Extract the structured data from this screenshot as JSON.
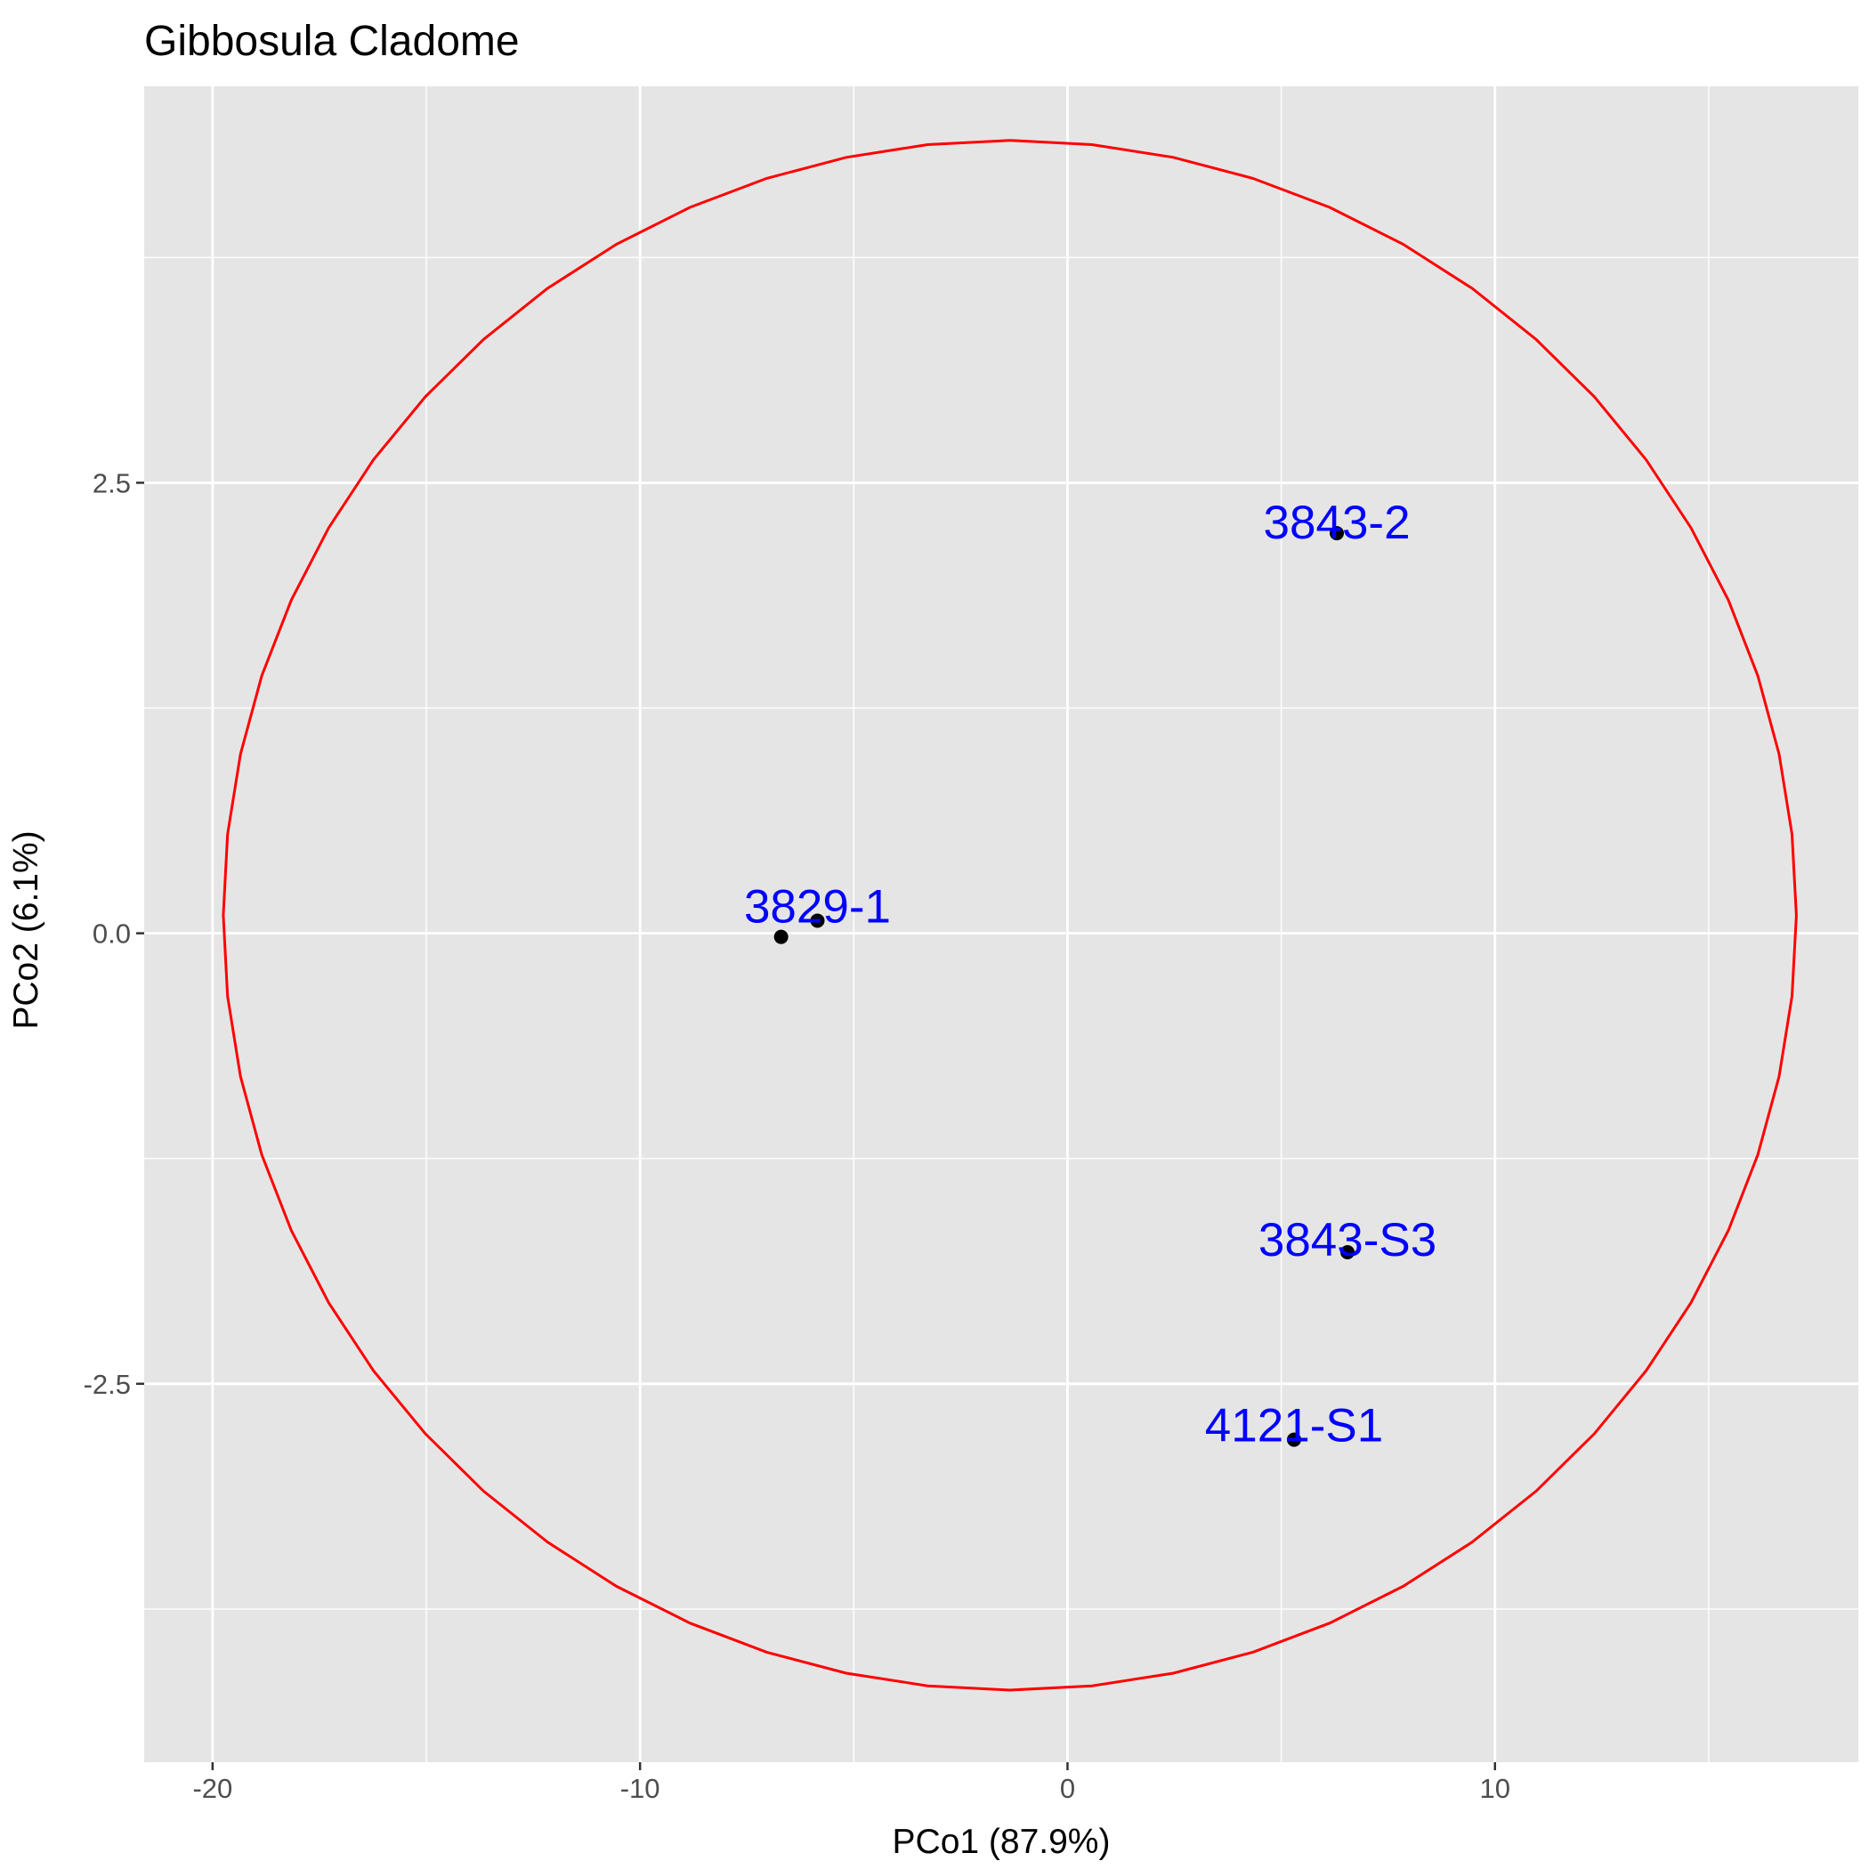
{
  "chart_data": {
    "type": "scatter",
    "title": "Gibbosula Cladome",
    "xlabel": "PCo1 (87.9%)",
    "ylabel": "PCo2 (6.1%)",
    "xlim": [
      -21.6,
      18.5
    ],
    "ylim": [
      -4.6,
      4.7
    ],
    "x_ticks": [
      -20,
      -10,
      0,
      10
    ],
    "x_tick_labels": [
      "-20",
      "-10",
      "0",
      "10"
    ],
    "y_ticks": [
      -2.5,
      0.0,
      2.5
    ],
    "y_tick_labels": [
      "-2.5",
      "0.0",
      "2.5"
    ],
    "x_minor": [
      -15,
      -5,
      5,
      15
    ],
    "y_minor": [
      -3.75,
      -1.25,
      1.25,
      3.75
    ],
    "grid": true,
    "points": [
      {
        "x": -6.7,
        "y": -0.02
      },
      {
        "x": -5.85,
        "y": 0.07
      },
      {
        "x": 6.3,
        "y": 2.22
      },
      {
        "x": 6.55,
        "y": -1.77
      },
      {
        "x": 5.3,
        "y": -2.81
      }
    ],
    "labels": [
      {
        "text": "3829-1",
        "x": -5.85,
        "y": 0.15
      },
      {
        "text": "3843-2",
        "x": 6.3,
        "y": 2.28
      },
      {
        "text": "3843-S3",
        "x": 6.55,
        "y": -1.7
      },
      {
        "text": "4121-S1",
        "x": 5.3,
        "y": -2.73
      }
    ],
    "ellipse": {
      "cx": -1.35,
      "cy": 0.1,
      "rx": 18.4,
      "ry": 4.3
    },
    "colors": {
      "panel": "#e5e5e5",
      "grid": "#ffffff",
      "ellipse": "#ff0000",
      "points": "#000000",
      "labels": "#0000ff",
      "ticks": "#333333"
    }
  }
}
